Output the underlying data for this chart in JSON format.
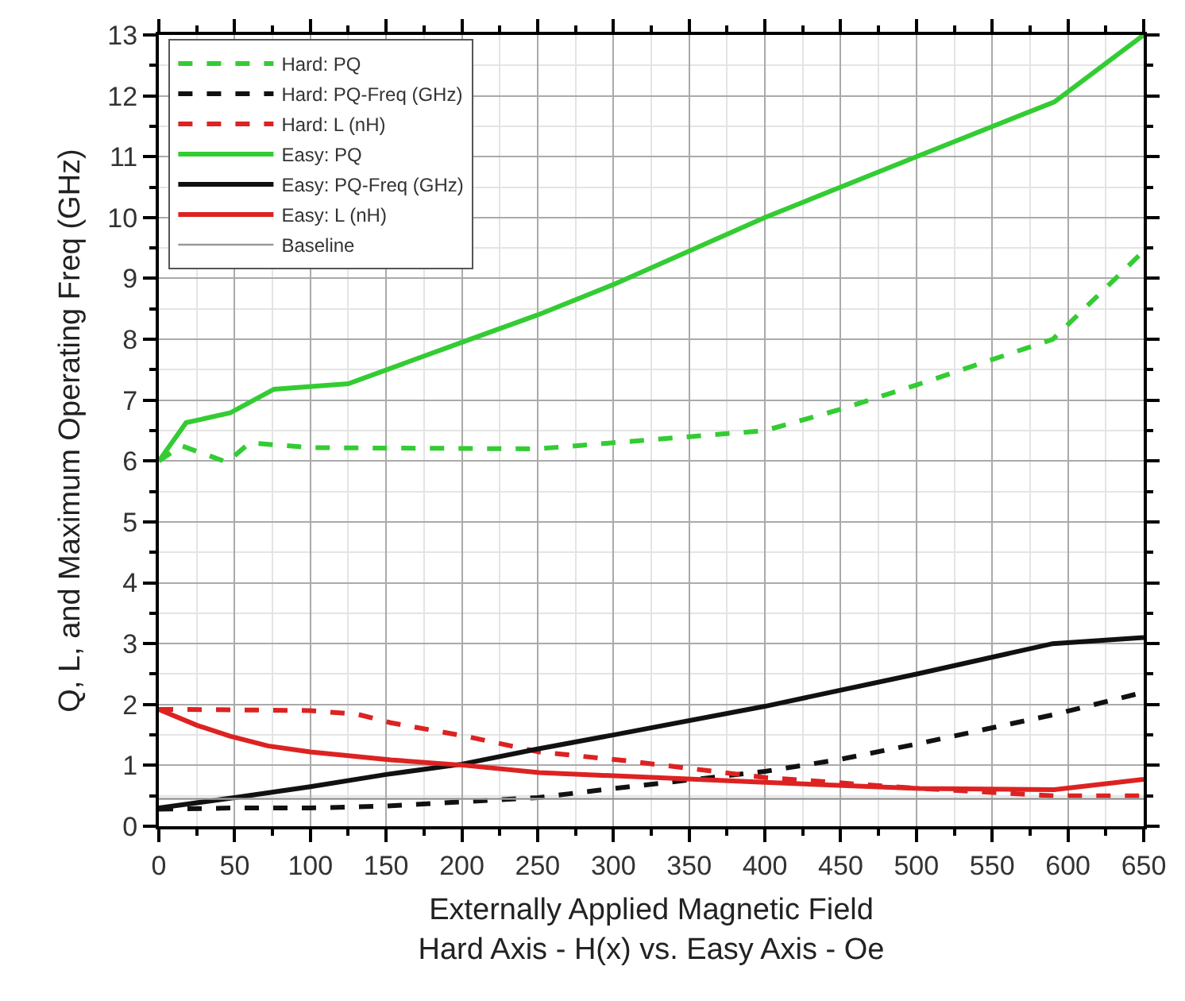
{
  "chart_data": {
    "type": "line",
    "xlabel": "Externally Applied Magnetic Field\nHard Axis - H(x) vs. Easy Axis - Oe",
    "ylabel": "Q, L, and Maximum Operating Freq (GHz)",
    "xlim": [
      0,
      650
    ],
    "xticks": [
      0,
      50,
      100,
      150,
      200,
      250,
      300,
      350,
      400,
      450,
      500,
      550,
      600,
      650
    ],
    "ylim": [
      0,
      13
    ],
    "yticks": [
      0,
      1,
      2,
      3,
      4,
      5,
      6,
      7,
      8,
      9,
      10,
      11,
      12,
      13
    ],
    "grid": true,
    "legend": "top left",
    "tick_labels": "xy",
    "series": [
      {
        "name": "Hard: PQ",
        "color": "#33cc33",
        "line_style": "dashed",
        "x": [
          0,
          15,
          45,
          60,
          100,
          250,
          300,
          400,
          450,
          500,
          590,
          650
        ],
        "values": [
          6.0,
          6.25,
          5.98,
          6.3,
          6.22,
          6.2,
          6.3,
          6.5,
          6.85,
          7.25,
          8.0,
          9.45
        ]
      },
      {
        "name": "Hard: PQ-Freq (GHz)",
        "color": "#111111",
        "line_style": "dashed",
        "x": [
          0,
          50,
          100,
          150,
          200,
          250,
          300,
          400,
          450,
          500,
          590,
          650
        ],
        "values": [
          0.28,
          0.3,
          0.3,
          0.33,
          0.4,
          0.47,
          0.62,
          0.9,
          1.1,
          1.35,
          1.83,
          2.2
        ]
      },
      {
        "name": "Hard: L (nH)",
        "color": "#dd2222",
        "line_style": "dashed",
        "x": [
          0,
          16,
          100,
          131,
          153,
          202,
          251,
          307,
          400,
          502,
          591,
          650
        ],
        "values": [
          1.92,
          1.92,
          1.9,
          1.84,
          1.7,
          1.48,
          1.22,
          1.08,
          0.8,
          0.62,
          0.5,
          0.5
        ]
      },
      {
        "name": "Easy: PQ",
        "color": "#33cc33",
        "line_style": "solid",
        "x": [
          0,
          18,
          47,
          76,
          125,
          200,
          250,
          300,
          400,
          500,
          591,
          650
        ],
        "values": [
          6.0,
          6.63,
          6.79,
          7.18,
          7.27,
          7.95,
          8.4,
          8.9,
          10.0,
          11.0,
          11.9,
          13.0
        ]
      },
      {
        "name": "Easy: PQ-Freq (GHz)",
        "color": "#111111",
        "line_style": "solid",
        "x": [
          0,
          50,
          100,
          150,
          200,
          250,
          300,
          400,
          500,
          590,
          650
        ],
        "values": [
          0.3,
          0.47,
          0.65,
          0.85,
          1.02,
          1.27,
          1.5,
          1.97,
          2.5,
          3.0,
          3.1
        ]
      },
      {
        "name": "Easy: L (nH)",
        "color": "#dd2222",
        "line_style": "solid",
        "x": [
          0,
          25,
          47,
          72,
          100,
          153,
          202,
          251,
          328,
          400,
          502,
          591,
          650
        ],
        "values": [
          1.92,
          1.66,
          1.48,
          1.32,
          1.22,
          1.09,
          1.0,
          0.88,
          0.8,
          0.72,
          0.62,
          0.6,
          0.77
        ]
      }
    ],
    "ref_lines": [
      {
        "axis": "y",
        "value": 0.45,
        "label": "Baseline",
        "color": "#999999",
        "line_style": "solid"
      }
    ]
  }
}
